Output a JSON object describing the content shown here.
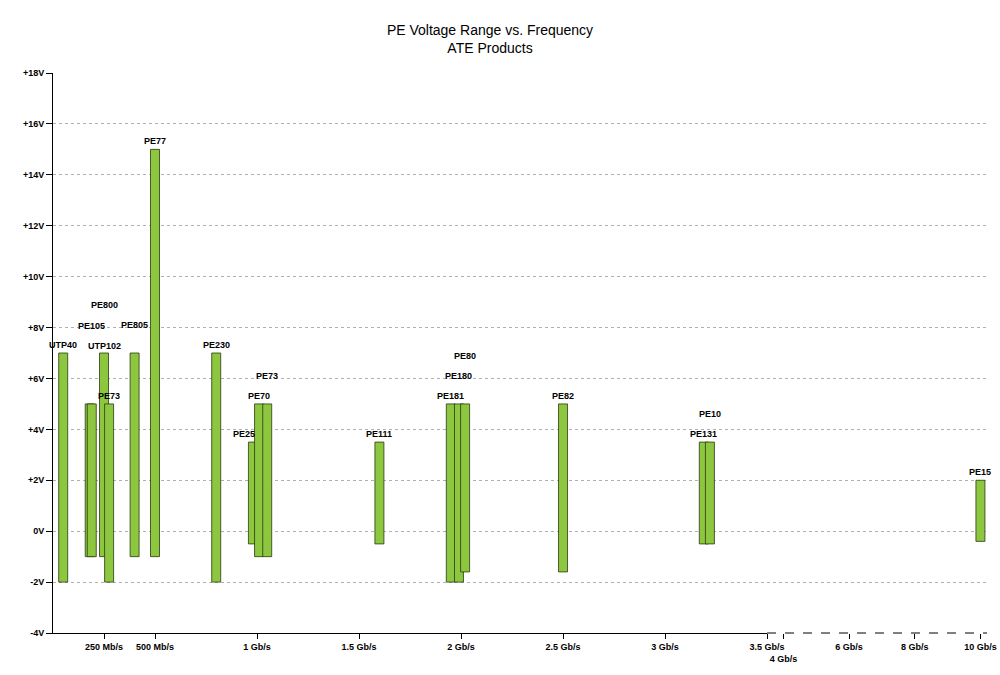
{
  "chart_data": {
    "type": "bar",
    "title": "PE Voltage Range vs. Frequency",
    "subtitle": "ATE Products",
    "color": "#8dc63f",
    "grid": true,
    "ylim": [
      -4,
      18
    ],
    "yticks": [
      {
        "value": -4,
        "label": "-4V"
      },
      {
        "value": -2,
        "label": "-2V"
      },
      {
        "value": 0,
        "label": "0V"
      },
      {
        "value": 2,
        "label": "+2V"
      },
      {
        "value": 4,
        "label": "+4V"
      },
      {
        "value": 6,
        "label": "+6V"
      },
      {
        "value": 8,
        "label": "+8V"
      },
      {
        "value": 10,
        "label": "+10V"
      },
      {
        "value": 12,
        "label": "+12V"
      },
      {
        "value": 14,
        "label": "+14V"
      },
      {
        "value": 16,
        "label": "+16V"
      },
      {
        "value": 18,
        "label": "+18V"
      }
    ],
    "xlim": [
      0,
      3.5
    ],
    "xticks": [
      {
        "value": 0.25,
        "label": "250 Mb/s"
      },
      {
        "value": 0.5,
        "label": "500 Mb/s"
      },
      {
        "value": 1,
        "label": "1 Gb/s"
      },
      {
        "value": 1.5,
        "label": "1.5 Gb/s"
      },
      {
        "value": 2,
        "label": "2 Gb/s"
      },
      {
        "value": 2.5,
        "label": "2.5 Gb/s"
      },
      {
        "value": 3,
        "label": "3 Gb/s"
      },
      {
        "value": 3.5,
        "label": "3.5 Gb/s"
      }
    ],
    "x2lim": [
      3.5,
      10.2
    ],
    "x2ticks": [
      {
        "value": 4,
        "label": "4 Gb/s"
      },
      {
        "value": 6,
        "label": "6 Gb/s"
      },
      {
        "value": 8,
        "label": "8 Gb/s"
      },
      {
        "value": 10,
        "label": "10 Gb/s"
      }
    ],
    "series": [
      {
        "name": "UTP40",
        "x": 0.05,
        "low": -2,
        "high": 7
      },
      {
        "name": "UTP102",
        "x": 0.18,
        "low": -1,
        "high": 5
      },
      {
        "name": "PE105",
        "x": 0.19,
        "low": -1,
        "high": 5
      },
      {
        "name": "PE800",
        "x": 0.25,
        "low": -1,
        "high": 7
      },
      {
        "name": "PE73",
        "x": 0.275,
        "low": -2,
        "high": 5
      },
      {
        "name": "PE805",
        "x": 0.4,
        "low": -1,
        "high": 7
      },
      {
        "name": "PE77",
        "x": 0.5,
        "low": -1,
        "high": 15
      },
      {
        "name": "PE230",
        "x": 0.8,
        "low": -2,
        "high": 7
      },
      {
        "name": "PE25",
        "x": 0.98,
        "low": -0.5,
        "high": 3.5
      },
      {
        "name": "PE70",
        "x": 1.01,
        "low": -1,
        "high": 5
      },
      {
        "name": "PE73",
        "x": 1.05,
        "low": -1,
        "high": 5
      },
      {
        "name": "PE111",
        "x": 1.6,
        "low": -0.5,
        "high": 3.5
      },
      {
        "name": "PE181",
        "x": 1.95,
        "low": -2,
        "high": 5
      },
      {
        "name": "PE180",
        "x": 1.99,
        "low": -2,
        "high": 5
      },
      {
        "name": "PE80",
        "x": 2.02,
        "low": -1.6,
        "high": 5
      },
      {
        "name": "PE82",
        "x": 2.5,
        "low": -1.6,
        "high": 5
      },
      {
        "name": "PE131",
        "x": 3.19,
        "low": -0.5,
        "high": 3.5
      },
      {
        "name": "PE10",
        "x": 3.22,
        "low": -0.5,
        "high": 3.5
      },
      {
        "name": "PE15",
        "x": 10,
        "low": -0.4,
        "high": 2,
        "axis": "x2"
      }
    ]
  }
}
